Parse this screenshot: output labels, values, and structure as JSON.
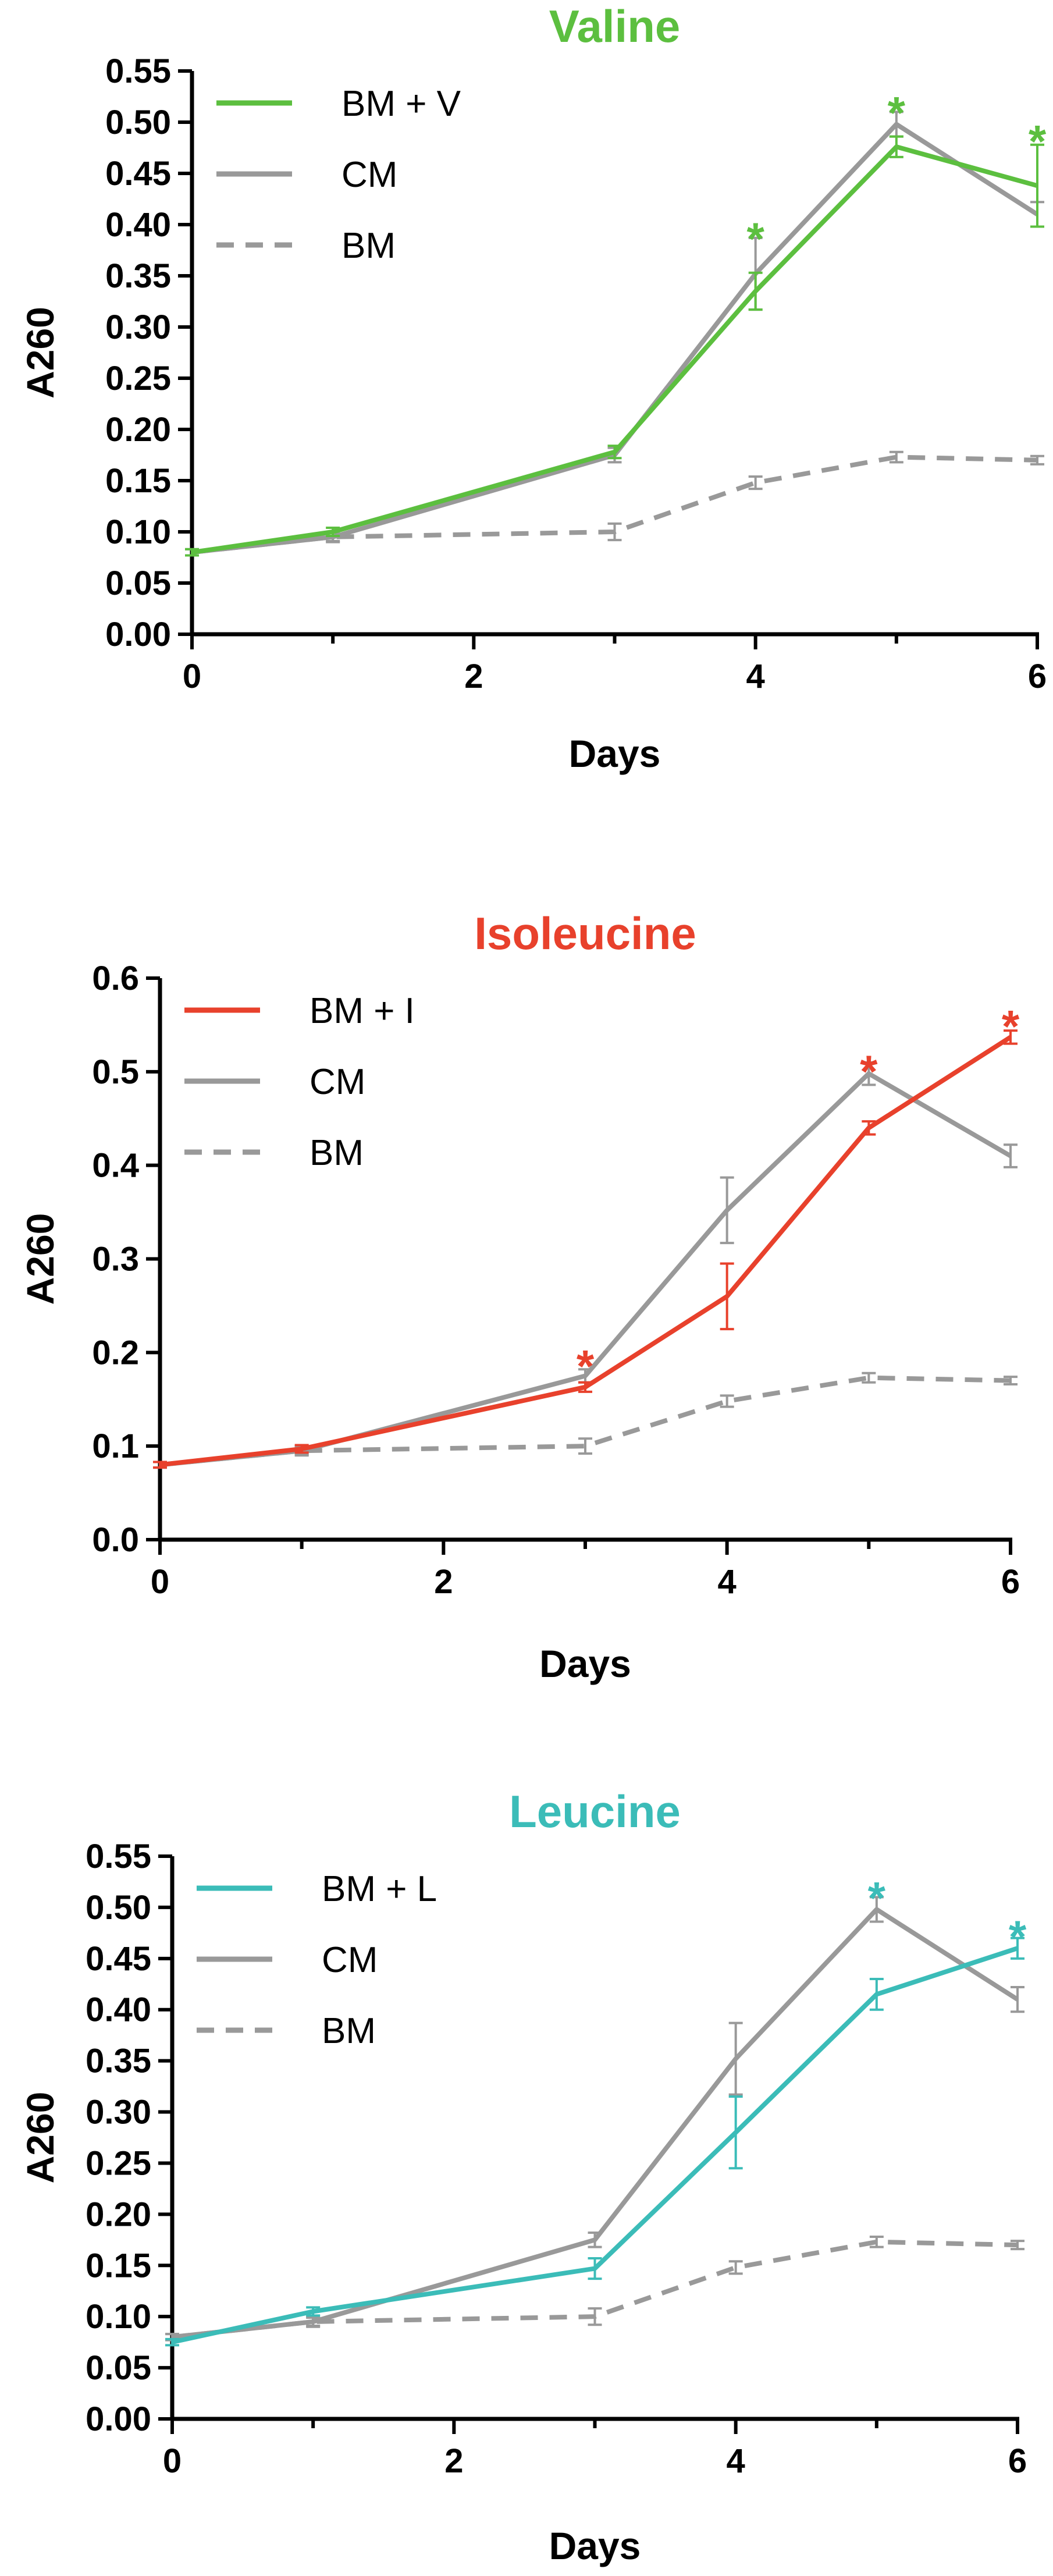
{
  "chart_data": [
    {
      "type": "line",
      "title": "Valine",
      "title_color": "#5cbf3f",
      "xlabel": "Days",
      "ylabel": "A260",
      "xlim": [
        0,
        6
      ],
      "ylim": [
        0,
        0.55
      ],
      "x_ticks": [
        0,
        2,
        4,
        6
      ],
      "y_ticks": [
        0.0,
        0.05,
        0.1,
        0.15,
        0.2,
        0.25,
        0.3,
        0.35,
        0.4,
        0.45,
        0.5,
        0.55
      ],
      "y_tick_labels": [
        "0.00",
        "0.05",
        "0.10",
        "0.15",
        "0.20",
        "0.25",
        "0.30",
        "0.35",
        "0.40",
        "0.45",
        "0.50",
        "0.55"
      ],
      "legend_position": "top-left",
      "series": [
        {
          "name": "BM + V",
          "color": "#5cbf3f",
          "style": "solid",
          "x": [
            0,
            1,
            3,
            4,
            5,
            6
          ],
          "y": [
            0.08,
            0.1,
            0.178,
            0.335,
            0.476,
            0.438
          ],
          "err": [
            0.003,
            0.004,
            0.006,
            0.018,
            0.01,
            0.04
          ]
        },
        {
          "name": "CM",
          "color": "#999999",
          "style": "solid",
          "x": [
            0,
            1,
            3,
            4,
            5,
            6
          ],
          "y": [
            0.08,
            0.095,
            0.175,
            0.352,
            0.498,
            0.41
          ],
          "err": [
            0.003,
            0.004,
            0.007,
            0.035,
            0.012,
            0.012
          ]
        },
        {
          "name": "BM",
          "color": "#999999",
          "style": "dashed",
          "x": [
            0,
            1,
            3,
            4,
            5,
            6
          ],
          "y": [
            0.08,
            0.095,
            0.1,
            0.148,
            0.173,
            0.17
          ],
          "err": [
            0.003,
            0.005,
            0.008,
            0.006,
            0.005,
            0.004
          ]
        }
      ],
      "annotations": [
        {
          "text": "*",
          "x": 4,
          "y": 0.395,
          "color": "#5cbf3f"
        },
        {
          "text": "*",
          "x": 5,
          "y": 0.518,
          "color": "#5cbf3f"
        },
        {
          "text": "*",
          "x": 6,
          "y": 0.49,
          "color": "#5cbf3f"
        }
      ]
    },
    {
      "type": "line",
      "title": "Isoleucine",
      "title_color": "#e8412c",
      "xlabel": "Days",
      "ylabel": "A260",
      "xlim": [
        0,
        6
      ],
      "ylim": [
        0,
        0.6
      ],
      "x_ticks": [
        0,
        2,
        4,
        6
      ],
      "y_ticks": [
        0.0,
        0.1,
        0.2,
        0.3,
        0.4,
        0.5,
        0.6
      ],
      "y_tick_labels": [
        "0.0",
        "0.1",
        "0.2",
        "0.3",
        "0.4",
        "0.5",
        "0.6"
      ],
      "legend_position": "top-left",
      "series": [
        {
          "name": "BM + I",
          "color": "#e8412c",
          "style": "solid",
          "x": [
            0,
            1,
            3,
            4,
            5,
            6
          ],
          "y": [
            0.08,
            0.097,
            0.163,
            0.26,
            0.44,
            0.537
          ],
          "err": [
            0.003,
            0.004,
            0.005,
            0.035,
            0.007,
            0.007
          ]
        },
        {
          "name": "CM",
          "color": "#999999",
          "style": "solid",
          "x": [
            0,
            1,
            3,
            4,
            5,
            6
          ],
          "y": [
            0.08,
            0.095,
            0.175,
            0.352,
            0.498,
            0.41
          ],
          "err": [
            0.003,
            0.004,
            0.007,
            0.035,
            0.012,
            0.012
          ]
        },
        {
          "name": "BM",
          "color": "#999999",
          "style": "dashed",
          "x": [
            0,
            1,
            3,
            4,
            5,
            6
          ],
          "y": [
            0.08,
            0.095,
            0.1,
            0.148,
            0.173,
            0.17
          ],
          "err": [
            0.003,
            0.005,
            0.008,
            0.006,
            0.005,
            0.004
          ]
        }
      ],
      "annotations": [
        {
          "text": "*",
          "x": 3,
          "y": 0.195,
          "color": "#e8412c"
        },
        {
          "text": "*",
          "x": 5,
          "y": 0.51,
          "color": "#e8412c"
        },
        {
          "text": "*",
          "x": 6,
          "y": 0.558,
          "color": "#e8412c"
        }
      ]
    },
    {
      "type": "line",
      "title": "Leucine",
      "title_color": "#3bbcb8",
      "xlabel": "Days",
      "ylabel": "A260",
      "xlim": [
        0,
        6
      ],
      "ylim": [
        0,
        0.55
      ],
      "x_ticks": [
        0,
        2,
        4,
        6
      ],
      "y_ticks": [
        0.0,
        0.05,
        0.1,
        0.15,
        0.2,
        0.25,
        0.3,
        0.35,
        0.4,
        0.45,
        0.5,
        0.55
      ],
      "y_tick_labels": [
        "0.00",
        "0.05",
        "0.10",
        "0.15",
        "0.20",
        "0.25",
        "0.30",
        "0.35",
        "0.40",
        "0.45",
        "0.50",
        "0.55"
      ],
      "legend_position": "top-left",
      "series": [
        {
          "name": "BM + L",
          "color": "#3bbcb8",
          "style": "solid",
          "x": [
            0,
            1,
            3,
            4,
            5,
            6
          ],
          "y": [
            0.075,
            0.105,
            0.147,
            0.28,
            0.415,
            0.46
          ],
          "err": [
            0.003,
            0.004,
            0.01,
            0.035,
            0.015,
            0.01
          ]
        },
        {
          "name": "CM",
          "color": "#999999",
          "style": "solid",
          "x": [
            0,
            1,
            3,
            4,
            5,
            6
          ],
          "y": [
            0.08,
            0.095,
            0.175,
            0.352,
            0.498,
            0.41
          ],
          "err": [
            0.003,
            0.004,
            0.007,
            0.035,
            0.012,
            0.012
          ]
        },
        {
          "name": "BM",
          "color": "#999999",
          "style": "dashed",
          "x": [
            0,
            1,
            3,
            4,
            5,
            6
          ],
          "y": [
            0.08,
            0.095,
            0.1,
            0.148,
            0.173,
            0.17
          ],
          "err": [
            0.003,
            0.005,
            0.008,
            0.006,
            0.005,
            0.004
          ]
        }
      ],
      "annotations": [
        {
          "text": "*",
          "x": 5,
          "y": 0.518,
          "color": "#3bbcb8"
        },
        {
          "text": "*",
          "x": 6,
          "y": 0.48,
          "color": "#3bbcb8"
        }
      ]
    }
  ]
}
